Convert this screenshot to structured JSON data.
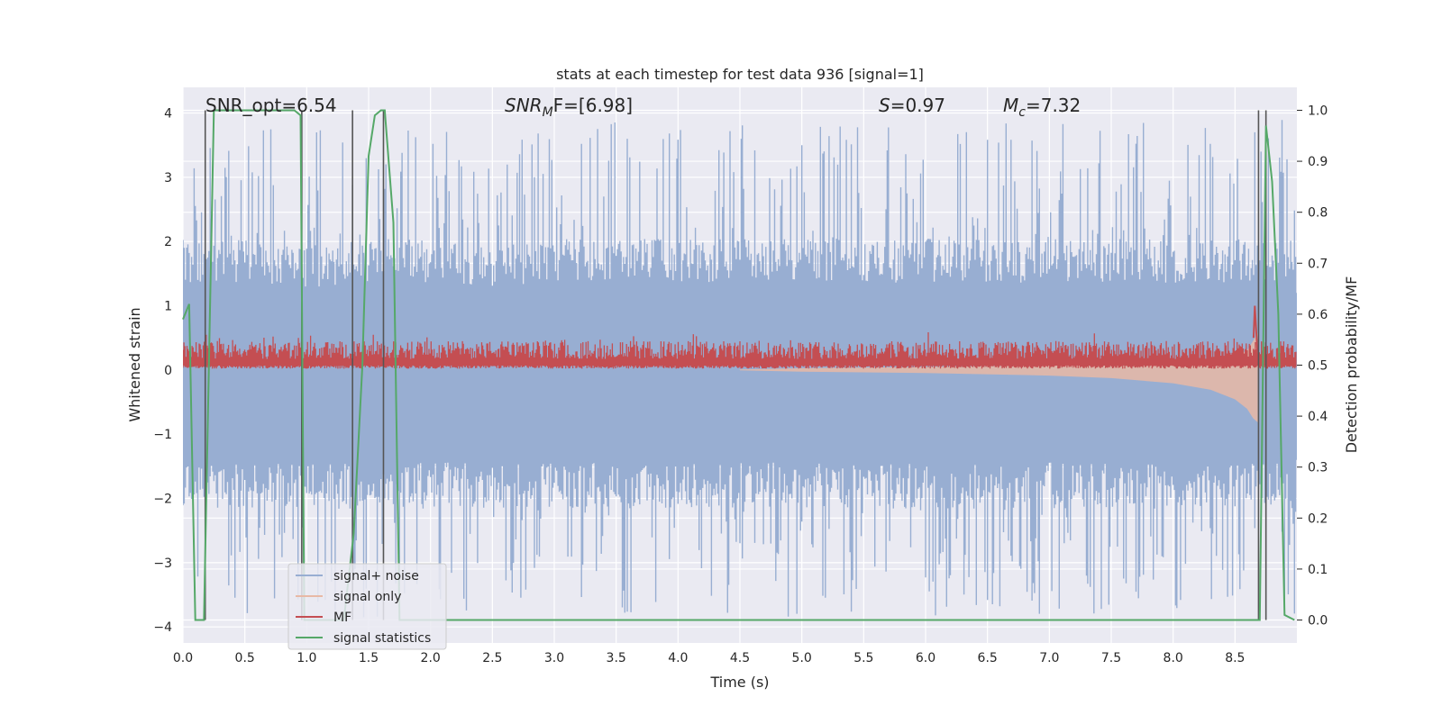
{
  "chart_data": {
    "type": "line",
    "title": "stats at each timestep for test data 936 [signal=1]",
    "xlabel": "Time (s)",
    "ylabel_left": "Whitened strain",
    "ylabel_right": "Detection probability/MF",
    "xlim": [
      0.0,
      9.0
    ],
    "ylim_left": [
      -4.25,
      4.4
    ],
    "ylim_right": [
      -0.045,
      1.045
    ],
    "xticks": [
      0.0,
      0.5,
      1.0,
      1.5,
      2.0,
      2.5,
      3.0,
      3.5,
      4.0,
      4.5,
      5.0,
      5.5,
      6.0,
      6.5,
      7.0,
      7.5,
      8.0,
      8.5
    ],
    "xtick_labels": [
      "0.0",
      "0.5",
      "1.0",
      "1.5",
      "2.0",
      "2.5",
      "3.0",
      "3.5",
      "4.0",
      "4.5",
      "5.0",
      "5.5",
      "6.0",
      "6.5",
      "7.0",
      "7.5",
      "8.0",
      "8.5"
    ],
    "yticks_left": [
      4,
      3,
      2,
      1,
      0,
      -1,
      -2,
      -3,
      -4
    ],
    "ytick_labels_left": [
      "4",
      "3",
      "2",
      "1",
      "0",
      "−1",
      "−2",
      "−3",
      "−4"
    ],
    "yticks_right": [
      1.0,
      0.9,
      0.8,
      0.7,
      0.6,
      0.5,
      0.4,
      0.3,
      0.2,
      0.1,
      0.0
    ],
    "ytick_labels_right": [
      "1.0",
      "0.9",
      "0.8",
      "0.7",
      "0.6",
      "0.5",
      "0.4",
      "0.3",
      "0.2",
      "0.1",
      "0.0"
    ],
    "annotations": {
      "snr_opt": "SNR_opt=6.54",
      "snr_mf_base": "SNR",
      "snr_mf_sub": "M",
      "snr_mf_rest": "F=[6.98]",
      "s_var": "S",
      "s_rest": "=0.97",
      "mc_var": "M",
      "mc_sub": "c",
      "mc_rest": "=7.32"
    },
    "grid": true,
    "legend_position": "lower-left",
    "legend": [
      "signal+ noise",
      "signal only",
      "MF",
      "signal statistics"
    ],
    "series": [
      {
        "name": "signal+ noise",
        "color": "#98aed2",
        "axis": "left",
        "envelope_upper": [
          [
            0.0,
            1.7
          ],
          [
            0.5,
            1.7
          ],
          [
            1.0,
            1.6
          ],
          [
            1.5,
            1.7
          ],
          [
            2.0,
            1.7
          ],
          [
            2.5,
            1.6
          ],
          [
            3.0,
            1.7
          ],
          [
            3.5,
            1.7
          ],
          [
            4.0,
            1.7
          ],
          [
            4.5,
            1.7
          ],
          [
            5.0,
            1.7
          ],
          [
            5.5,
            1.7
          ],
          [
            6.0,
            1.7
          ],
          [
            6.5,
            1.7
          ],
          [
            7.0,
            1.7
          ],
          [
            7.5,
            1.7
          ],
          [
            8.0,
            1.7
          ],
          [
            8.5,
            1.7
          ],
          [
            9.0,
            1.7
          ]
        ],
        "envelope_lower": [
          [
            0.0,
            -1.8
          ],
          [
            0.5,
            -1.8
          ],
          [
            1.0,
            -1.8
          ],
          [
            1.5,
            -1.8
          ],
          [
            2.0,
            -1.8
          ],
          [
            2.5,
            -1.8
          ],
          [
            3.0,
            -1.8
          ],
          [
            3.5,
            -1.8
          ],
          [
            4.0,
            -1.8
          ],
          [
            4.5,
            -1.8
          ],
          [
            5.0,
            -1.8
          ],
          [
            5.5,
            -1.8
          ],
          [
            6.0,
            -1.8
          ],
          [
            6.5,
            -1.8
          ],
          [
            7.0,
            -1.8
          ],
          [
            7.5,
            -1.8
          ],
          [
            8.0,
            -1.8
          ],
          [
            8.5,
            -1.8
          ],
          [
            9.0,
            -1.8
          ]
        ],
        "peak_upper": 3.9,
        "peak_lower": -3.85
      },
      {
        "name": "signal only",
        "color": "#e8b9a6",
        "axis": "left",
        "envelope_upper": [
          [
            4.5,
            0.0
          ],
          [
            5.0,
            -0.02
          ],
          [
            6.0,
            -0.04
          ],
          [
            7.0,
            -0.08
          ],
          [
            7.5,
            -0.12
          ],
          [
            8.0,
            -0.2
          ],
          [
            8.3,
            -0.3
          ],
          [
            8.5,
            -0.45
          ],
          [
            8.6,
            -0.6
          ],
          [
            8.65,
            -0.75
          ],
          [
            8.68,
            -0.8
          ]
        ],
        "envelope_upper_top": [
          [
            4.5,
            0.0
          ],
          [
            5.0,
            0.02
          ],
          [
            6.0,
            0.04
          ],
          [
            7.0,
            0.07
          ],
          [
            7.5,
            0.09
          ],
          [
            8.0,
            0.12
          ],
          [
            8.3,
            0.15
          ],
          [
            8.5,
            0.2
          ],
          [
            8.6,
            0.3
          ],
          [
            8.65,
            0.45
          ],
          [
            8.68,
            0.55
          ]
        ]
      },
      {
        "name": "MF",
        "color": "#c44e52",
        "axis": "left",
        "band_low": 0.02,
        "band_high": 0.45,
        "peak": [
          [
            8.65,
            0.5
          ],
          [
            8.66,
            1.0
          ],
          [
            8.68,
            0.3
          ]
        ]
      },
      {
        "name": "signal statistics",
        "color": "#55a868",
        "axis": "right",
        "points": [
          [
            0.0,
            0.59
          ],
          [
            0.05,
            0.62
          ],
          [
            0.1,
            0.0
          ],
          [
            0.17,
            0.0
          ],
          [
            0.25,
            1.0
          ],
          [
            0.9,
            1.0
          ],
          [
            0.95,
            0.99
          ],
          [
            0.98,
            0.0
          ],
          [
            1.3,
            0.0
          ],
          [
            1.38,
            0.17
          ],
          [
            1.45,
            0.5
          ],
          [
            1.5,
            0.91
          ],
          [
            1.55,
            0.99
          ],
          [
            1.6,
            1.0
          ],
          [
            1.63,
            1.0
          ],
          [
            1.7,
            0.78
          ],
          [
            1.75,
            0.0
          ],
          [
            8.7,
            0.0
          ],
          [
            8.75,
            0.97
          ],
          [
            8.8,
            0.86
          ],
          [
            8.85,
            0.6
          ],
          [
            8.9,
            0.01
          ],
          [
            8.98,
            0.0
          ]
        ]
      }
    ],
    "vertical_lines_x": [
      0.18,
      0.96,
      1.37,
      1.62,
      8.69,
      8.75
    ]
  }
}
